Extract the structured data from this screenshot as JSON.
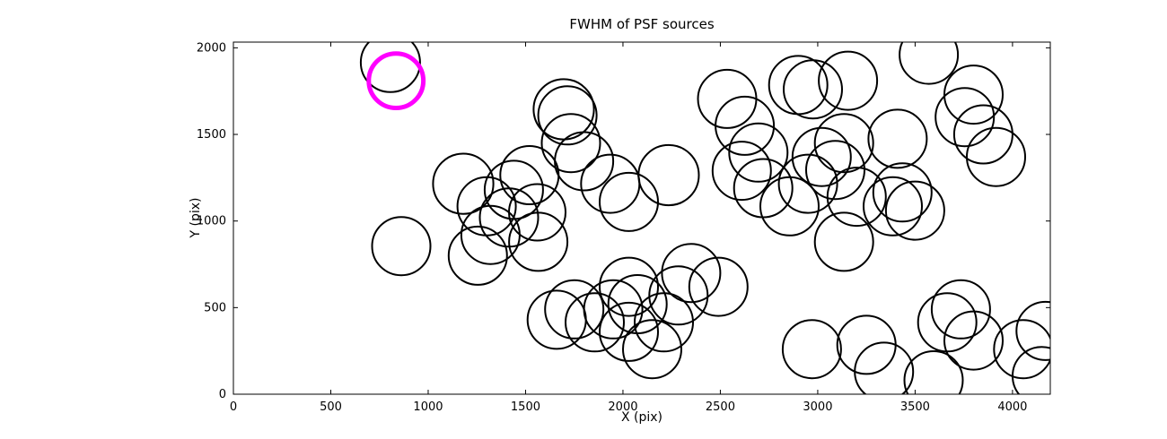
{
  "chart_data": {
    "type": "scatter",
    "title": "FWHM of PSF sources",
    "xlabel": "X (pix)",
    "ylabel": "Y (pix)",
    "xlim": [
      0,
      4194
    ],
    "ylim": [
      0,
      2033
    ],
    "x_ticks": [
      0,
      500,
      1000,
      1500,
      2000,
      2500,
      3000,
      3500,
      4000
    ],
    "y_ticks": [
      0,
      500,
      1000,
      1500,
      2000
    ],
    "grid": false,
    "legend": "none",
    "marker_style": "open-circle",
    "circle_color": "#000000",
    "circle_stroke_width": 2,
    "highlight": {
      "x": 835,
      "y": 1810,
      "r": 140,
      "color": "#FF00FF",
      "stroke_width": 5
    },
    "circles": [
      [
        806,
        1915,
        152
      ],
      [
        862,
        855,
        150
      ],
      [
        1180,
        1215,
        155
      ],
      [
        1300,
        1085,
        150
      ],
      [
        1320,
        920,
        150
      ],
      [
        1255,
        800,
        150
      ],
      [
        1415,
        1020,
        150
      ],
      [
        1440,
        1180,
        150
      ],
      [
        1520,
        1265,
        150
      ],
      [
        1560,
        1050,
        145
      ],
      [
        1565,
        880,
        150
      ],
      [
        1696,
        1645,
        155
      ],
      [
        1715,
        1610,
        150
      ],
      [
        1733,
        1450,
        150
      ],
      [
        1800,
        1345,
        150
      ],
      [
        1935,
        1215,
        150
      ],
      [
        2030,
        1110,
        150
      ],
      [
        2235,
        1265,
        155
      ],
      [
        2610,
        1290,
        150
      ],
      [
        1660,
        430,
        150
      ],
      [
        1750,
        490,
        150
      ],
      [
        1855,
        415,
        150
      ],
      [
        1950,
        490,
        150
      ],
      [
        2030,
        360,
        150
      ],
      [
        2030,
        620,
        150
      ],
      [
        2075,
        520,
        150
      ],
      [
        2150,
        260,
        150
      ],
      [
        2210,
        415,
        150
      ],
      [
        2285,
        570,
        150
      ],
      [
        2350,
        700,
        150
      ],
      [
        2490,
        620,
        150
      ],
      [
        2535,
        1705,
        150
      ],
      [
        2625,
        1550,
        150
      ],
      [
        2695,
        1395,
        150
      ],
      [
        2720,
        1190,
        150
      ],
      [
        2855,
        1085,
        150
      ],
      [
        2900,
        1785,
        150
      ],
      [
        2975,
        1760,
        150
      ],
      [
        3020,
        1370,
        150
      ],
      [
        3090,
        1295,
        150
      ],
      [
        3155,
        1810,
        150
      ],
      [
        3135,
        1450,
        150
      ],
      [
        2950,
        1215,
        150
      ],
      [
        3200,
        1140,
        150
      ],
      [
        3135,
        880,
        150
      ],
      [
        3385,
        1085,
        150
      ],
      [
        3435,
        1165,
        150
      ],
      [
        3500,
        1060,
        150
      ],
      [
        3410,
        1475,
        150
      ],
      [
        3570,
        1960,
        150
      ],
      [
        3755,
        1600,
        150
      ],
      [
        3800,
        1730,
        150
      ],
      [
        3850,
        1500,
        150
      ],
      [
        3915,
        1370,
        150
      ],
      [
        2970,
        260,
        150
      ],
      [
        3250,
        285,
        150
      ],
      [
        3340,
        130,
        150
      ],
      [
        3595,
        80,
        150
      ],
      [
        3665,
        415,
        150
      ],
      [
        3735,
        490,
        150
      ],
      [
        3800,
        310,
        150
      ],
      [
        4055,
        260,
        150
      ],
      [
        4150,
        105,
        150
      ],
      [
        4170,
        365,
        150
      ]
    ]
  }
}
